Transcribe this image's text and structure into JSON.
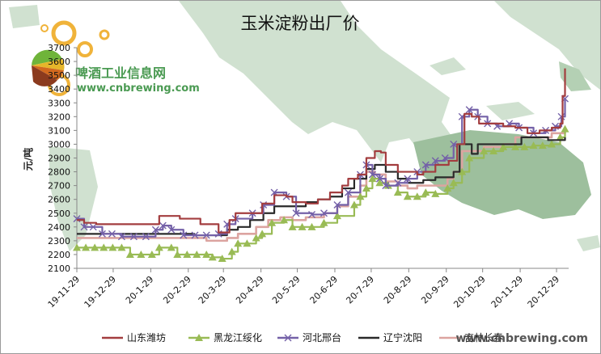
{
  "watermark": {
    "logo_text": "啤酒工业信息网",
    "logo_url": "www.cnbrewing.com",
    "footer_url": "www.cnbrewing.com"
  },
  "colors": {
    "shandong": "#a33d3f",
    "heilongjiang": "#99bb55",
    "hebei": "#7461a8",
    "liaoning": "#2a2a2a",
    "fifth": "#dca4a0",
    "map_land": "#c8dcc8",
    "map_dark": "#8cb48c"
  },
  "chart_data": {
    "type": "line",
    "title": "玉米淀粉出厂价",
    "ylabel": "元/吨",
    "ylim": [
      2100,
      3700
    ],
    "yticks": [
      2100,
      2200,
      2300,
      2400,
      2500,
      2600,
      2700,
      2800,
      2900,
      3000,
      3100,
      3200,
      3300,
      3400,
      3500,
      3600,
      3700
    ],
    "xticks": [
      "19-11-29",
      "19-12-29",
      "20-1-29",
      "20-2-29",
      "20-3-29",
      "20-4-29",
      "20-5-29",
      "20-6-29",
      "20-7-29",
      "20-8-29",
      "20-9-29",
      "20-10-29",
      "20-11-29",
      "20-12-29"
    ],
    "x_range": [
      "2019-11-29",
      "2021-01-08"
    ],
    "series": [
      {
        "name": "山东潍坊",
        "key": "shandong",
        "marker": "none",
        "points": [
          [
            "2019-11-29",
            2450
          ],
          [
            "2019-12-05",
            2430
          ],
          [
            "2019-12-15",
            2420
          ],
          [
            "2020-01-30",
            2420
          ],
          [
            "2020-02-05",
            2480
          ],
          [
            "2020-02-15",
            2480
          ],
          [
            "2020-02-22",
            2460
          ],
          [
            "2020-03-05",
            2460
          ],
          [
            "2020-03-10",
            2420
          ],
          [
            "2020-03-25",
            2360
          ],
          [
            "2020-04-03",
            2450
          ],
          [
            "2020-04-08",
            2500
          ],
          [
            "2020-04-25",
            2500
          ],
          [
            "2020-04-30",
            2570
          ],
          [
            "2020-05-10",
            2630
          ],
          [
            "2020-05-20",
            2620
          ],
          [
            "2020-05-25",
            2580
          ],
          [
            "2020-06-05",
            2570
          ],
          [
            "2020-06-15",
            2600
          ],
          [
            "2020-06-25",
            2650
          ],
          [
            "2020-07-05",
            2700
          ],
          [
            "2020-07-10",
            2750
          ],
          [
            "2020-07-18",
            2780
          ],
          [
            "2020-07-25",
            2900
          ],
          [
            "2020-08-01",
            2950
          ],
          [
            "2020-08-06",
            2940
          ],
          [
            "2020-08-10",
            2850
          ],
          [
            "2020-08-20",
            2800
          ],
          [
            "2020-09-05",
            2780
          ],
          [
            "2020-09-10",
            2800
          ],
          [
            "2020-09-20",
            2850
          ],
          [
            "2020-10-01",
            2880
          ],
          [
            "2020-10-08",
            3000
          ],
          [
            "2020-10-14",
            3220
          ],
          [
            "2020-10-20",
            3200
          ],
          [
            "2020-10-26",
            3150
          ],
          [
            "2020-11-05",
            3150
          ],
          [
            "2020-11-15",
            3130
          ],
          [
            "2020-11-25",
            3120
          ],
          [
            "2020-12-05",
            3080
          ],
          [
            "2020-12-15",
            3100
          ],
          [
            "2020-12-25",
            3120
          ],
          [
            "2021-01-01",
            3150
          ],
          [
            "2021-01-03",
            3350
          ],
          [
            "2021-01-05",
            3550
          ]
        ]
      },
      {
        "name": "黑龙江绥化",
        "key": "heilongjiang",
        "marker": "triangle",
        "points": [
          [
            "2019-11-29",
            2250
          ],
          [
            "2020-01-05",
            2250
          ],
          [
            "2020-01-12",
            2200
          ],
          [
            "2020-01-30",
            2200
          ],
          [
            "2020-02-05",
            2250
          ],
          [
            "2020-02-15",
            2250
          ],
          [
            "2020-02-20",
            2200
          ],
          [
            "2020-03-15",
            2200
          ],
          [
            "2020-03-20",
            2180
          ],
          [
            "2020-03-28",
            2170
          ],
          [
            "2020-04-05",
            2220
          ],
          [
            "2020-04-10",
            2280
          ],
          [
            "2020-04-25",
            2320
          ],
          [
            "2020-04-30",
            2350
          ],
          [
            "2020-05-08",
            2430
          ],
          [
            "2020-05-18",
            2450
          ],
          [
            "2020-05-25",
            2400
          ],
          [
            "2020-06-10",
            2400
          ],
          [
            "2020-06-20",
            2430
          ],
          [
            "2020-07-01",
            2480
          ],
          [
            "2020-07-15",
            2560
          ],
          [
            "2020-07-20",
            2620
          ],
          [
            "2020-07-25",
            2680
          ],
          [
            "2020-07-30",
            2750
          ],
          [
            "2020-08-05",
            2720
          ],
          [
            "2020-08-12",
            2700
          ],
          [
            "2020-08-20",
            2650
          ],
          [
            "2020-08-28",
            2620
          ],
          [
            "2020-09-05",
            2620
          ],
          [
            "2020-09-12",
            2650
          ],
          [
            "2020-09-20",
            2640
          ],
          [
            "2020-09-30",
            2680
          ],
          [
            "2020-10-05",
            2720
          ],
          [
            "2020-10-12",
            2800
          ],
          [
            "2020-10-18",
            2900
          ],
          [
            "2020-10-30",
            2950
          ],
          [
            "2020-11-15",
            2980
          ],
          [
            "2020-11-25",
            2980
          ],
          [
            "2020-12-10",
            2990
          ],
          [
            "2020-12-25",
            3000
          ],
          [
            "2021-01-01",
            3050
          ],
          [
            "2021-01-05",
            3110
          ]
        ]
      },
      {
        "name": "河北邢台",
        "key": "hebei",
        "marker": "x",
        "points": [
          [
            "2019-11-29",
            2460
          ],
          [
            "2019-12-05",
            2400
          ],
          [
            "2019-12-20",
            2350
          ],
          [
            "2020-01-05",
            2330
          ],
          [
            "2020-01-25",
            2330
          ],
          [
            "2020-02-02",
            2380
          ],
          [
            "2020-02-08",
            2410
          ],
          [
            "2020-02-15",
            2380
          ],
          [
            "2020-02-25",
            2340
          ],
          [
            "2020-03-15",
            2340
          ],
          [
            "2020-03-25",
            2350
          ],
          [
            "2020-04-01",
            2420
          ],
          [
            "2020-04-08",
            2460
          ],
          [
            "2020-04-22",
            2500
          ],
          [
            "2020-05-01",
            2560
          ],
          [
            "2020-05-10",
            2650
          ],
          [
            "2020-05-20",
            2620
          ],
          [
            "2020-05-28",
            2500
          ],
          [
            "2020-06-10",
            2490
          ],
          [
            "2020-06-20",
            2500
          ],
          [
            "2020-07-01",
            2560
          ],
          [
            "2020-07-10",
            2650
          ],
          [
            "2020-07-20",
            2780
          ],
          [
            "2020-07-25",
            2850
          ],
          [
            "2020-07-30",
            2780
          ],
          [
            "2020-08-05",
            2750
          ],
          [
            "2020-08-10",
            2700
          ],
          [
            "2020-08-20",
            2720
          ],
          [
            "2020-08-28",
            2750
          ],
          [
            "2020-09-05",
            2800
          ],
          [
            "2020-09-12",
            2850
          ],
          [
            "2020-09-20",
            2880
          ],
          [
            "2020-09-28",
            2900
          ],
          [
            "2020-10-05",
            3000
          ],
          [
            "2020-10-12",
            3200
          ],
          [
            "2020-10-18",
            3250
          ],
          [
            "2020-10-25",
            3200
          ],
          [
            "2020-11-02",
            3150
          ],
          [
            "2020-11-10",
            3130
          ],
          [
            "2020-11-20",
            3150
          ],
          [
            "2020-11-28",
            3120
          ],
          [
            "2020-12-10",
            3080
          ],
          [
            "2020-12-20",
            3100
          ],
          [
            "2020-12-28",
            3130
          ],
          [
            "2021-01-02",
            3200
          ],
          [
            "2021-01-05",
            3330
          ]
        ]
      },
      {
        "name": "辽宁沈阳",
        "key": "liaoning",
        "marker": "none",
        "points": [
          [
            "2019-11-29",
            2350
          ],
          [
            "2020-02-25",
            2350
          ],
          [
            "2020-03-05",
            2340
          ],
          [
            "2020-03-22",
            2340
          ],
          [
            "2020-04-01",
            2380
          ],
          [
            "2020-04-10",
            2400
          ],
          [
            "2020-04-20",
            2450
          ],
          [
            "2020-05-01",
            2500
          ],
          [
            "2020-05-10",
            2550
          ],
          [
            "2020-05-25",
            2550
          ],
          [
            "2020-06-05",
            2580
          ],
          [
            "2020-06-15",
            2600
          ],
          [
            "2020-06-25",
            2620
          ],
          [
            "2020-07-05",
            2680
          ],
          [
            "2020-07-15",
            2750
          ],
          [
            "2020-07-25",
            2820
          ],
          [
            "2020-08-01",
            2850
          ],
          [
            "2020-08-10",
            2800
          ],
          [
            "2020-08-20",
            2750
          ],
          [
            "2020-08-28",
            2720
          ],
          [
            "2020-09-10",
            2740
          ],
          [
            "2020-09-20",
            2760
          ],
          [
            "2020-09-30",
            2760
          ],
          [
            "2020-10-05",
            2800
          ],
          [
            "2020-10-10",
            3000
          ],
          [
            "2020-10-15",
            3000
          ],
          [
            "2020-10-20",
            2930
          ],
          [
            "2020-10-25",
            3000
          ],
          [
            "2020-11-25",
            3000
          ],
          [
            "2020-11-30",
            3050
          ],
          [
            "2020-12-15",
            3050
          ],
          [
            "2020-12-22",
            3030
          ],
          [
            "2021-01-05",
            3050
          ]
        ]
      },
      {
        "name": "吉林长春",
        "key": "fifth",
        "marker": "none",
        "points": [
          [
            "2019-11-29",
            2320
          ],
          [
            "2020-03-05",
            2320
          ],
          [
            "2020-03-15",
            2300
          ],
          [
            "2020-03-25",
            2300
          ],
          [
            "2020-04-01",
            2320
          ],
          [
            "2020-04-10",
            2350
          ],
          [
            "2020-04-25",
            2400
          ],
          [
            "2020-05-05",
            2450
          ],
          [
            "2020-05-15",
            2470
          ],
          [
            "2020-05-25",
            2450
          ],
          [
            "2020-06-05",
            2470
          ],
          [
            "2020-06-20",
            2500
          ],
          [
            "2020-07-01",
            2550
          ],
          [
            "2020-07-10",
            2620
          ],
          [
            "2020-07-20",
            2700
          ],
          [
            "2020-07-25",
            2800
          ],
          [
            "2020-08-01",
            2780
          ],
          [
            "2020-08-10",
            2730
          ],
          [
            "2020-08-20",
            2700
          ],
          [
            "2020-08-28",
            2680
          ],
          [
            "2020-09-05",
            2700
          ],
          [
            "2020-09-15",
            2700
          ],
          [
            "2020-09-30",
            2750
          ],
          [
            "2020-10-05",
            2800
          ],
          [
            "2020-10-12",
            2950
          ],
          [
            "2020-10-20",
            2950
          ],
          [
            "2020-10-30",
            2980
          ],
          [
            "2020-11-15",
            3000
          ],
          [
            "2020-11-25",
            3050
          ],
          [
            "2020-12-10",
            3050
          ],
          [
            "2020-12-25",
            3080
          ],
          [
            "2021-01-05",
            3120
          ]
        ]
      }
    ]
  }
}
